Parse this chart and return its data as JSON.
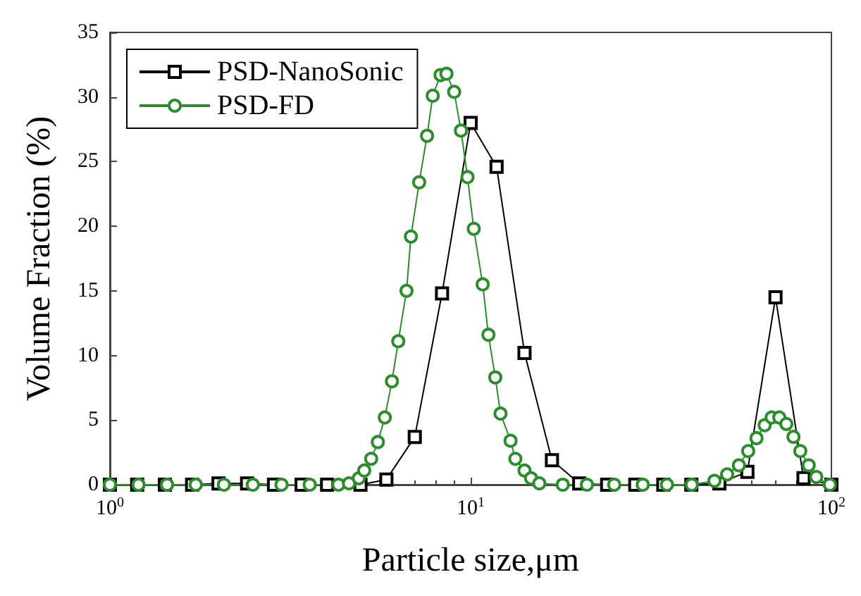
{
  "chart_data": {
    "type": "line",
    "xlabel": "Particle size,μm",
    "ylabel": "Volume Fraction (%)",
    "log": "x",
    "xlim": [
      1,
      100
    ],
    "xticks": [
      {
        "value": 1,
        "label": "10$^{0}$"
      },
      {
        "value": 10,
        "label": "10$^{1}$"
      },
      {
        "value": 100,
        "label": "10$^{2}$"
      }
    ],
    "ylim": [
      0,
      35
    ],
    "yticks": [
      0,
      5,
      10,
      15,
      20,
      25,
      30,
      35
    ],
    "grid": false,
    "legend": "top left",
    "line_style": "solid",
    "series": [
      {
        "name": "PSD-NanoSonic",
        "color": "#000000",
        "marker": "square",
        "x": [
          1,
          1.19,
          1.42,
          1.69,
          2.0,
          2.4,
          2.85,
          3.4,
          4.0,
          4.95,
          5.84,
          7.0,
          8.33,
          10,
          11.8,
          14.1,
          16.8,
          20,
          23.9,
          28.6,
          34.2,
          40.9,
          48.9,
          58.5,
          70,
          83.7,
          100
        ],
        "values": [
          0,
          0,
          0,
          0,
          0.1,
          0.1,
          0,
          0,
          0,
          0,
          0.4,
          3.7,
          14.8,
          28,
          24.6,
          10.2,
          1.9,
          0.1,
          0,
          0,
          0,
          0,
          0.1,
          1.0,
          14.5,
          0.5,
          0
        ]
      },
      {
        "name": "PSD-FD",
        "color": "#2e8b2e",
        "marker": "circle",
        "x": [
          1,
          1.2,
          1.44,
          1.73,
          2.07,
          2.49,
          2.99,
          3.58,
          4.3,
          4.6,
          4.9,
          5.07,
          5.3,
          5.53,
          5.78,
          6.05,
          6.3,
          6.64,
          6.83,
          7.2,
          7.57,
          7.85,
          8.25,
          8.57,
          9.0,
          9.4,
          9.8,
          10.2,
          10.8,
          11.2,
          11.7,
          12.1,
          12.9,
          13.3,
          14.1,
          14.7,
          15.5,
          18,
          21,
          25,
          30,
          35,
          41,
          47.4,
          51.4,
          55.4,
          58.8,
          62,
          65.3,
          68.3,
          71.7,
          75,
          78.5,
          82,
          86.5,
          90.8,
          99
        ],
        "values": [
          0,
          0,
          0,
          0,
          0,
          0,
          0,
          0,
          0,
          0.1,
          0.5,
          1.1,
          2.0,
          3.3,
          5.2,
          8.0,
          11.1,
          15.0,
          19.2,
          23.4,
          27.0,
          30.1,
          31.7,
          31.8,
          30.4,
          27.4,
          23.8,
          19.8,
          15.5,
          11.6,
          8.3,
          5.5,
          3.4,
          2.0,
          1.1,
          0.5,
          0.1,
          0,
          0,
          0,
          0,
          0,
          0,
          0.3,
          0.8,
          1.5,
          2.6,
          3.6,
          4.6,
          5.2,
          5.2,
          4.7,
          3.7,
          2.6,
          1.5,
          0.6,
          0
        ]
      }
    ]
  }
}
